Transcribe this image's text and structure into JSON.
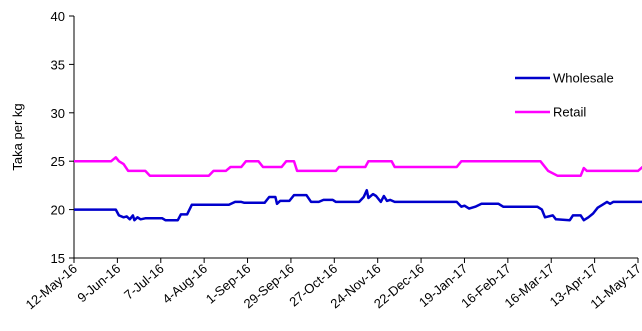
{
  "chart_data": {
    "type": "line",
    "title": "",
    "xlabel": "",
    "ylabel": "Taka per kg",
    "ylim": [
      15,
      40
    ],
    "yticks": [
      15,
      20,
      25,
      30,
      35,
      40
    ],
    "grid": false,
    "legend": "right",
    "x_ticks": [
      "12-May-16",
      "9-Jun-16",
      "7-Jul-16",
      "4-Aug-16",
      "1-Sep-16",
      "29-Sep-16",
      "27-Oct-16",
      "24-Nov-16",
      "22-Dec-16",
      "19-Jan-17",
      "16-Feb-17",
      "16-Mar-17",
      "13-Apr-17",
      "11-May-17"
    ],
    "series": [
      {
        "name": "Wholesale",
        "color": "#0000cc",
        "points": [
          [
            "2016-05-12",
            20.0
          ],
          [
            "2016-06-08",
            20.0
          ],
          [
            "2016-06-10",
            19.4
          ],
          [
            "2016-06-13",
            19.2
          ],
          [
            "2016-06-15",
            19.3
          ],
          [
            "2016-06-17",
            19.0
          ],
          [
            "2016-06-19",
            19.4
          ],
          [
            "2016-06-20",
            18.9
          ],
          [
            "2016-06-22",
            19.2
          ],
          [
            "2016-06-24",
            19.0
          ],
          [
            "2016-06-27",
            19.1
          ],
          [
            "2016-07-08",
            19.1
          ],
          [
            "2016-07-10",
            18.9
          ],
          [
            "2016-07-18",
            18.9
          ],
          [
            "2016-07-20",
            19.5
          ],
          [
            "2016-07-24",
            19.5
          ],
          [
            "2016-07-27",
            20.5
          ],
          [
            "2016-08-20",
            20.5
          ],
          [
            "2016-08-24",
            20.8
          ],
          [
            "2016-08-28",
            20.8
          ],
          [
            "2016-08-30",
            20.7
          ],
          [
            "2016-09-12",
            20.7
          ],
          [
            "2016-09-15",
            21.3
          ],
          [
            "2016-09-19",
            21.3
          ],
          [
            "2016-09-20",
            20.6
          ],
          [
            "2016-09-22",
            20.9
          ],
          [
            "2016-09-28",
            20.9
          ],
          [
            "2016-10-01",
            21.5
          ],
          [
            "2016-10-09",
            21.5
          ],
          [
            "2016-10-12",
            20.8
          ],
          [
            "2016-10-17",
            20.8
          ],
          [
            "2016-10-20",
            21.0
          ],
          [
            "2016-10-26",
            21.0
          ],
          [
            "2016-10-28",
            20.8
          ],
          [
            "2016-11-12",
            20.8
          ],
          [
            "2016-11-15",
            21.3
          ],
          [
            "2016-11-17",
            22.0
          ],
          [
            "2016-11-18",
            21.2
          ],
          [
            "2016-11-21",
            21.6
          ],
          [
            "2016-11-23",
            21.4
          ],
          [
            "2016-11-26",
            20.8
          ],
          [
            "2016-11-28",
            21.4
          ],
          [
            "2016-11-30",
            20.9
          ],
          [
            "2016-12-02",
            21.0
          ],
          [
            "2016-12-05",
            20.8
          ],
          [
            "2017-01-14",
            20.8
          ],
          [
            "2017-01-17",
            20.3
          ],
          [
            "2017-01-19",
            20.4
          ],
          [
            "2017-01-22",
            20.1
          ],
          [
            "2017-01-26",
            20.3
          ],
          [
            "2017-01-30",
            20.6
          ],
          [
            "2017-02-10",
            20.6
          ],
          [
            "2017-02-13",
            20.3
          ],
          [
            "2017-03-07",
            20.3
          ],
          [
            "2017-03-10",
            20.0
          ],
          [
            "2017-03-12",
            19.2
          ],
          [
            "2017-03-17",
            19.4
          ],
          [
            "2017-03-19",
            19.0
          ],
          [
            "2017-03-28",
            18.9
          ],
          [
            "2017-03-30",
            19.4
          ],
          [
            "2017-04-04",
            19.4
          ],
          [
            "2017-04-06",
            18.9
          ],
          [
            "2017-04-09",
            19.2
          ],
          [
            "2017-04-12",
            19.6
          ],
          [
            "2017-04-15",
            20.2
          ],
          [
            "2017-04-18",
            20.5
          ],
          [
            "2017-04-21",
            20.8
          ],
          [
            "2017-04-23",
            20.6
          ],
          [
            "2017-04-25",
            20.8
          ],
          [
            "2017-05-14",
            20.8
          ],
          [
            "2017-05-16",
            20.4
          ]
        ]
      },
      {
        "name": "Retail",
        "color": "#ff00ff",
        "points": [
          [
            "2016-05-12",
            25.0
          ],
          [
            "2016-06-05",
            25.0
          ],
          [
            "2016-06-08",
            25.4
          ],
          [
            "2016-06-10",
            25.0
          ],
          [
            "2016-06-13",
            24.7
          ],
          [
            "2016-06-16",
            24.0
          ],
          [
            "2016-06-27",
            24.0
          ],
          [
            "2016-06-30",
            23.5
          ],
          [
            "2016-08-07",
            23.5
          ],
          [
            "2016-08-10",
            24.0
          ],
          [
            "2016-08-18",
            24.0
          ],
          [
            "2016-08-21",
            24.4
          ],
          [
            "2016-08-28",
            24.4
          ],
          [
            "2016-08-31",
            25.0
          ],
          [
            "2016-09-08",
            25.0
          ],
          [
            "2016-09-11",
            24.4
          ],
          [
            "2016-09-23",
            24.4
          ],
          [
            "2016-09-26",
            25.0
          ],
          [
            "2016-10-01",
            25.0
          ],
          [
            "2016-10-03",
            24.0
          ],
          [
            "2016-10-28",
            24.0
          ],
          [
            "2016-10-30",
            24.4
          ],
          [
            "2016-11-16",
            24.4
          ],
          [
            "2016-11-18",
            25.0
          ],
          [
            "2016-12-03",
            25.0
          ],
          [
            "2016-12-05",
            24.4
          ],
          [
            "2017-01-14",
            24.4
          ],
          [
            "2017-01-17",
            25.0
          ],
          [
            "2017-03-09",
            25.0
          ],
          [
            "2017-03-14",
            24.0
          ],
          [
            "2017-03-20",
            23.5
          ],
          [
            "2017-04-04",
            23.5
          ],
          [
            "2017-04-06",
            24.3
          ],
          [
            "2017-04-08",
            24.0
          ],
          [
            "2017-05-11",
            24.0
          ],
          [
            "2017-05-14",
            24.4
          ],
          [
            "2017-05-16",
            24.4
          ]
        ]
      }
    ]
  }
}
